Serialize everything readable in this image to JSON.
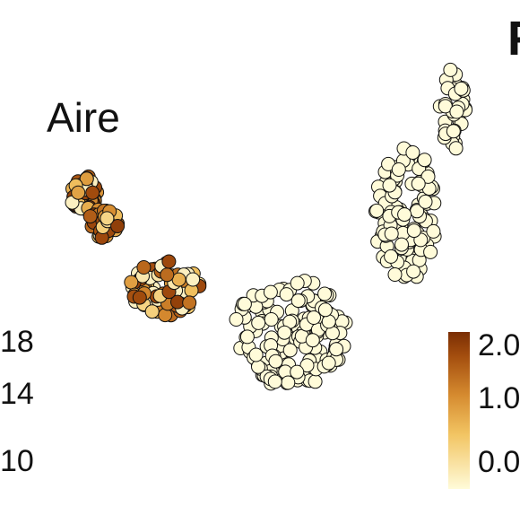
{
  "chart_data": {
    "type": "scatter",
    "title": "Aire",
    "panel_label": "F",
    "xlabel": "",
    "ylabel": "",
    "y_ticks": [
      "18",
      "14",
      "10"
    ],
    "colorbar": {
      "tick_labels": [
        "2.0",
        "1.0",
        "0.0"
      ],
      "range": [
        0,
        2.0
      ],
      "colors": [
        "#fffbd9",
        "#f2c462",
        "#d58a2f",
        "#a34d0e",
        "#7a2e04"
      ]
    },
    "clusters": [
      {
        "cx": 3.2,
        "cy": 18.4,
        "rx": 0.55,
        "ry": 0.5,
        "n": 60,
        "expr_mean": 1.25
      },
      {
        "cx": 4.0,
        "cy": 17.6,
        "rx": 0.6,
        "ry": 0.55,
        "n": 40,
        "expr_mean": 1.0
      },
      {
        "cx": 6.4,
        "cy": 15.6,
        "rx": 1.4,
        "ry": 0.8,
        "n": 85,
        "expr_mean": 0.9
      },
      {
        "cx": 11.2,
        "cy": 14.3,
        "rx": 2.2,
        "ry": 1.6,
        "n": 170,
        "expr_mean": 0.0
      },
      {
        "cx": 15.6,
        "cy": 17.8,
        "rx": 1.2,
        "ry": 2.0,
        "n": 110,
        "expr_mean": 0.0
      },
      {
        "cx": 17.4,
        "cy": 20.8,
        "rx": 0.5,
        "ry": 1.2,
        "n": 35,
        "expr_mean": 0.0
      }
    ],
    "x_range": [
      0,
      20
    ],
    "y_range": [
      9,
      24
    ]
  }
}
